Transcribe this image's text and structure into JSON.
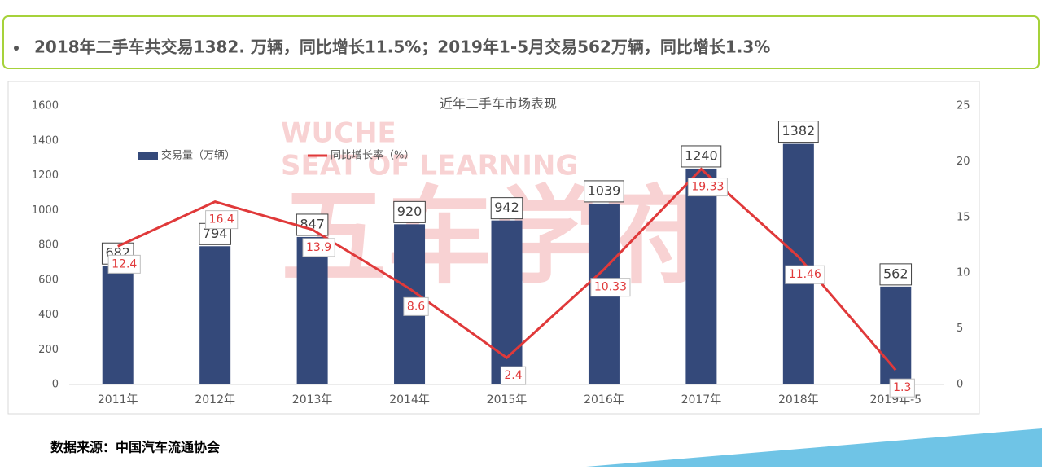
{
  "header": {
    "text": "2018年二手车共交易1382. 万辆，同比增长11.5%；2019年1-5月交易562万辆，同比增长1.3%"
  },
  "footer": {
    "text": "数据来源：中国汽车流通协会"
  },
  "watermark": [
    "WUCHE",
    "SEAT OF LEARNING",
    "五车学府"
  ],
  "chart_data": {
    "type": "bar",
    "title": "近年二手车市场表现",
    "categories": [
      "2011年",
      "2012年",
      "2013年",
      "2014年",
      "2015年",
      "2016年",
      "2017年",
      "2018年",
      "2019年-5"
    ],
    "series": [
      {
        "name": "交易量（万辆）",
        "type": "bar",
        "color": "#34497a",
        "values": [
          682,
          794,
          847,
          920,
          942,
          1039,
          1240,
          1382,
          562
        ]
      },
      {
        "name": "同比增长率（%）",
        "type": "line",
        "axis": "y2",
        "color": "#e0393a",
        "values": [
          12.4,
          16.4,
          13.9,
          8.6,
          2.4,
          10.33,
          19.33,
          11.46,
          1.3
        ]
      }
    ],
    "ylim": [
      0,
      1600
    ],
    "yticks": [
      0,
      200,
      400,
      600,
      800,
      1000,
      1200,
      1400,
      1600
    ],
    "y2lim": [
      0,
      25
    ],
    "y2ticks": [
      0,
      5,
      10,
      15,
      20,
      25
    ]
  }
}
